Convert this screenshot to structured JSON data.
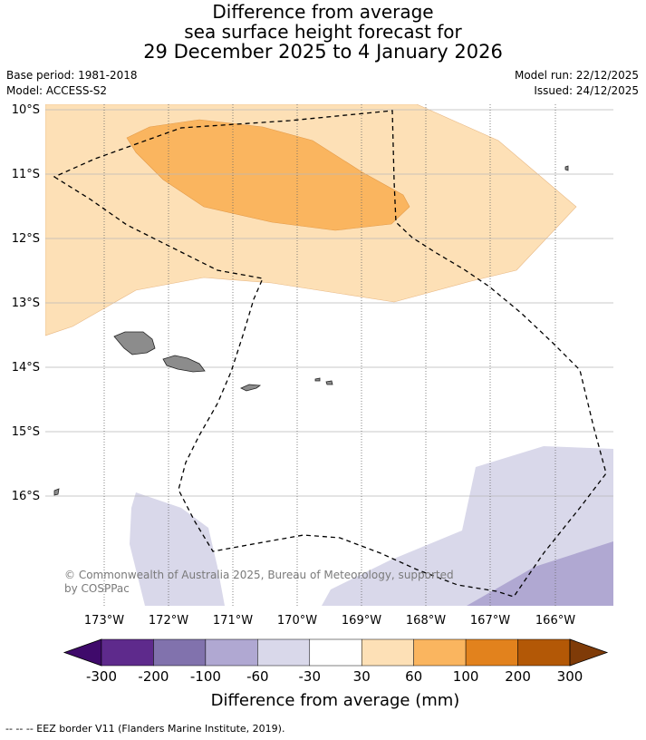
{
  "title": {
    "line1": "Difference from average",
    "line2": "sea surface height forecast for",
    "line3": "29 December 2025 to 4 January 2026"
  },
  "meta": {
    "base_period": "Base period: 1981-2018",
    "model": "Model: ACCESS-S2",
    "model_run": "Model run: 22/12/2025",
    "issued": "Issued: 24/12/2025"
  },
  "map": {
    "lat_labels": [
      "10°S",
      "11°S",
      "12°S",
      "13°S",
      "14°S",
      "15°S",
      "16°S"
    ],
    "lon_labels": [
      "173°W",
      "172°W",
      "171°W",
      "170°W",
      "169°W",
      "168°W",
      "167°W",
      "166°W"
    ],
    "copyright_line1": "© Commonwealth of Australia 2025, Bureau of Meteorology, supported",
    "copyright_line2": "by COSPPac",
    "land_color": "#8c8c8c"
  },
  "colorbar": {
    "ticks": [
      "-300",
      "-200",
      "-100",
      "-60",
      "-30",
      "30",
      "60",
      "100",
      "200",
      "300"
    ],
    "colors": [
      "#3f0a6b",
      "#5e2a8c",
      "#8172ad",
      "#b0a8d2",
      "#d9d8ea",
      "#ffffff",
      "#fde0b6",
      "#fab55f",
      "#e2821d",
      "#b35806",
      "#7f3b08"
    ],
    "label": "Difference from average (mm)"
  },
  "footer": {
    "legend": "--  --  -- EEZ border V11 (Flanders Marine Institute, 2019)."
  }
}
